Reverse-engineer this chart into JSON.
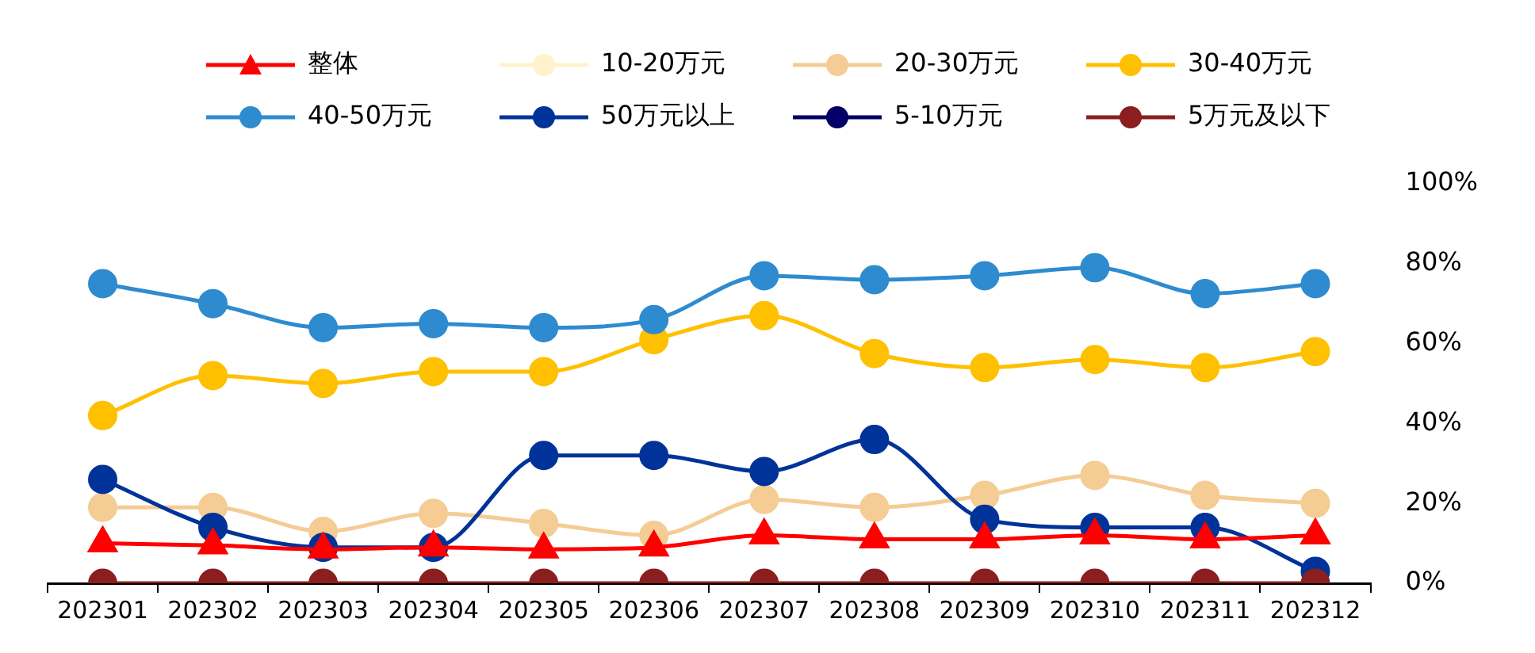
{
  "chart_data": {
    "type": "line",
    "categories": [
      "202301",
      "202302",
      "202303",
      "202304",
      "202305",
      "202306",
      "202307",
      "202308",
      "202309",
      "202310",
      "202311",
      "202312"
    ],
    "series": [
      {
        "name": "整体",
        "color": "#ff0000",
        "marker": "triangle",
        "values": [
          10,
          9.5,
          8.5,
          9,
          8.5,
          9,
          12,
          11,
          11,
          12,
          11,
          12
        ]
      },
      {
        "name": "10-20万元",
        "color": "#fff2cc",
        "marker": "circle",
        "values": [
          null,
          null,
          null,
          null,
          null,
          null,
          null,
          null,
          null,
          null,
          null,
          null
        ]
      },
      {
        "name": "20-30万元",
        "color": "#f4cc94",
        "marker": "circle",
        "values": [
          19,
          19,
          13,
          17.5,
          15,
          12,
          21,
          19,
          22,
          27,
          22,
          20
        ]
      },
      {
        "name": "30-40万元",
        "color": "#ffc000",
        "marker": "circle",
        "values": [
          42,
          52,
          50,
          53,
          53,
          61,
          67,
          57.5,
          54,
          56,
          54,
          58
        ]
      },
      {
        "name": "40-50万元",
        "color": "#2e8bd0",
        "marker": "circle",
        "values": [
          75,
          70,
          64,
          65,
          64,
          66,
          77,
          76,
          77,
          79,
          72.5,
          75
        ]
      },
      {
        "name": "50万元以上",
        "color": "#003399",
        "marker": "circle",
        "values": [
          26,
          14,
          9,
          9,
          32,
          32,
          28,
          36,
          16,
          14,
          14,
          3
        ]
      },
      {
        "name": "5-10万元",
        "color": "#000066",
        "marker": "circle",
        "values": [
          null,
          null,
          null,
          null,
          null,
          null,
          null,
          null,
          null,
          null,
          null,
          null
        ]
      },
      {
        "name": "5万元及以下",
        "color": "#8b1e1e",
        "marker": "circle",
        "values": [
          0,
          0,
          0,
          0,
          0,
          0,
          0,
          0,
          0,
          0,
          0,
          0
        ]
      }
    ],
    "ylim": [
      0,
      100
    ],
    "yticks": [
      {
        "value": 0,
        "label": "0%"
      },
      {
        "value": 20,
        "label": "20%"
      },
      {
        "value": 40,
        "label": "40%"
      },
      {
        "value": 60,
        "label": "60%"
      },
      {
        "value": 80,
        "label": "80%"
      },
      {
        "value": 100,
        "label": "100%"
      }
    ],
    "grid": false,
    "legend": "top",
    "line_style": "solid"
  }
}
